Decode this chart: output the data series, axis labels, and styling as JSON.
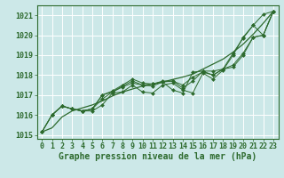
{
  "title": "Graphe pression niveau de la mer (hPa)",
  "bg_color": "#cce8e8",
  "grid_color": "#ffffff",
  "line_color": "#2d6a2d",
  "xlim": [
    -0.5,
    23.5
  ],
  "ylim": [
    1014.8,
    1021.5
  ],
  "yticks": [
    1015,
    1016,
    1017,
    1018,
    1019,
    1020,
    1021
  ],
  "xticks": [
    0,
    1,
    2,
    3,
    4,
    5,
    6,
    7,
    8,
    9,
    10,
    11,
    12,
    13,
    14,
    15,
    16,
    17,
    18,
    19,
    20,
    21,
    22,
    23
  ],
  "smooth_line": {
    "x": [
      0,
      1,
      2,
      3,
      4,
      5,
      6,
      7,
      8,
      9,
      10,
      11,
      12,
      13,
      14,
      15,
      16,
      17,
      18,
      19,
      20,
      21,
      22,
      23
    ],
    "y": [
      1015.15,
      1015.35,
      1015.9,
      1016.2,
      1016.35,
      1016.5,
      1016.7,
      1016.95,
      1017.15,
      1017.3,
      1017.45,
      1017.55,
      1017.65,
      1017.78,
      1017.9,
      1018.05,
      1018.3,
      1018.55,
      1018.8,
      1019.15,
      1019.55,
      1020.05,
      1020.6,
      1021.2
    ]
  },
  "series": [
    {
      "x": [
        0,
        1,
        2,
        3,
        4,
        5,
        6,
        7,
        8,
        9,
        10,
        11,
        12,
        13,
        14,
        15,
        16,
        17,
        18,
        19,
        20,
        21,
        22,
        23
      ],
      "y": [
        1015.15,
        1016.0,
        1016.45,
        1016.3,
        1016.2,
        1016.2,
        1016.5,
        1017.1,
        1017.15,
        1017.5,
        1017.15,
        1017.1,
        1017.5,
        1017.6,
        1017.25,
        1017.1,
        1018.1,
        1017.8,
        1018.25,
        1019.0,
        1019.9,
        1020.5,
        1021.05,
        1021.2
      ]
    },
    {
      "x": [
        0,
        1,
        2,
        3,
        4,
        5,
        6,
        7,
        8,
        9,
        10,
        11,
        12,
        13,
        14,
        15,
        16,
        17,
        18,
        19,
        20,
        21,
        22,
        23
      ],
      "y": [
        1015.15,
        1016.0,
        1016.45,
        1016.3,
        1016.2,
        1016.3,
        1016.8,
        1017.15,
        1017.4,
        1017.6,
        1017.5,
        1017.45,
        1017.65,
        1017.7,
        1017.5,
        1017.9,
        1018.15,
        1018.0,
        1018.3,
        1018.5,
        1019.1,
        1019.9,
        1020.0,
        1021.2
      ]
    },
    {
      "x": [
        0,
        1,
        2,
        3,
        4,
        5,
        6,
        7,
        8,
        9,
        10,
        11,
        12,
        13,
        14,
        15,
        16,
        17,
        18,
        19,
        20,
        21,
        22,
        23
      ],
      "y": [
        1015.15,
        1016.0,
        1016.45,
        1016.3,
        1016.2,
        1016.3,
        1017.0,
        1017.15,
        1017.45,
        1017.7,
        1017.5,
        1017.55,
        1017.65,
        1017.25,
        1017.1,
        1018.15,
        1018.2,
        1018.0,
        1018.3,
        1019.1,
        1019.85,
        1020.5,
        1020.0,
        1021.2
      ]
    },
    {
      "x": [
        1,
        2,
        3,
        4,
        5,
        6,
        7,
        8,
        9,
        10,
        11,
        12,
        13,
        14,
        15,
        16,
        17,
        18,
        19,
        20,
        21,
        22,
        23
      ],
      "y": [
        1016.0,
        1016.45,
        1016.3,
        1016.2,
        1016.3,
        1017.0,
        1017.2,
        1017.5,
        1017.8,
        1017.6,
        1017.55,
        1017.7,
        1017.7,
        1017.35,
        1017.7,
        1018.2,
        1018.2,
        1018.3,
        1018.4,
        1019.0,
        1019.9,
        1020.0,
        1021.2
      ]
    }
  ],
  "title_fontsize": 7,
  "tick_fontsize": 6
}
